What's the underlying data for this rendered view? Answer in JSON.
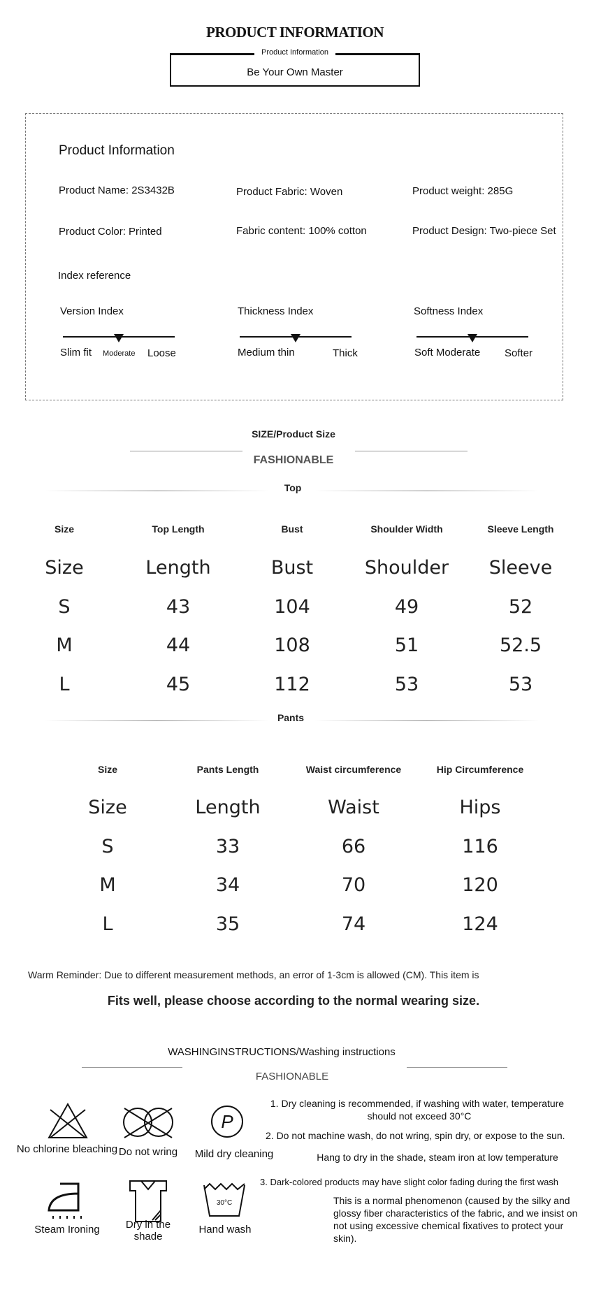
{
  "header": {
    "title": "PRODUCT INFORMATION",
    "box_label": "Product Information",
    "slogan": "Be Your Own Master"
  },
  "info": {
    "heading": "Product Information",
    "fields": [
      "Product Name: 2S3432B",
      "Product Fabric: Woven",
      "Product weight: 285G",
      "Product Color: Printed",
      "Fabric content: 100% cotton",
      "Product Design: Two-piece Set"
    ],
    "index_heading": "Index reference",
    "indices": [
      {
        "title": "Version Index",
        "left": "Slim fit",
        "mid": "Moderate",
        "right": "Loose",
        "level": 0.5
      },
      {
        "title": "Thickness Index",
        "left": "Medium thin",
        "right": "Thick",
        "level": 0.5
      },
      {
        "title": "Softness Index",
        "left": "Soft Moderate",
        "right": "Softer",
        "level": 0.5
      }
    ]
  },
  "size": {
    "title": "SIZE/Product Size",
    "subtitle": "FASHIONABLE",
    "top": {
      "label": "Top",
      "headers": [
        "Size",
        "Top Length",
        "Bust",
        "Shoulder Width",
        "Sleeve Length"
      ],
      "rows": [
        [
          "Size",
          "Length",
          "Bust",
          "Shoulder",
          "Sleeve"
        ],
        [
          "S",
          "43",
          "104",
          "49",
          "52"
        ],
        [
          "M",
          "44",
          "108",
          "51",
          "52.5"
        ],
        [
          "L",
          "45",
          "112",
          "53",
          "53"
        ]
      ]
    },
    "pants": {
      "label": "Pants",
      "headers": [
        "Size",
        "Pants Length",
        "Waist circumference",
        "Hip Circumference"
      ],
      "rows": [
        [
          "Size",
          "Length",
          "Waist",
          "Hips"
        ],
        [
          "S",
          "33",
          "66",
          "116"
        ],
        [
          "M",
          "34",
          "70",
          "120"
        ],
        [
          "L",
          "35",
          "74",
          "124"
        ]
      ]
    },
    "reminder": "Warm Reminder: Due to different measurement methods, an error of 1-3cm is allowed (CM). This item is",
    "reminder2": "Fits well, please choose according to the normal wearing size."
  },
  "washing": {
    "title": "WASHINGINSTRUCTIONS/Washing instructions",
    "subtitle": "FASHIONABLE",
    "icons": [
      {
        "icon": "no-bleach",
        "label": "No chlorine bleaching"
      },
      {
        "icon": "no-wring",
        "label": "Do not wring"
      },
      {
        "icon": "dry-clean-p",
        "label": "Mild dry cleaning"
      },
      {
        "icon": "steam-iron",
        "label": "Steam Ironing"
      },
      {
        "icon": "dry-shade",
        "label": "Dry in the shade"
      },
      {
        "icon": "hand-wash",
        "label": "Hand wash",
        "temp": "30°C"
      }
    ],
    "notes": [
      "1. Dry cleaning is recommended, if washing with water, temperature",
      "should not exceed 30°C",
      "2. Do not machine wash, do not wring, spin dry, or expose to the sun.",
      "Hang to dry in the shade, steam iron at low temperature",
      "3. Dark-colored products may have slight color fading during the first wash",
      "This is a normal phenomenon (caused by the silky and glossy fiber characteristics of the fabric, and we insist on not using excessive chemical fixatives to protect your skin)."
    ]
  }
}
